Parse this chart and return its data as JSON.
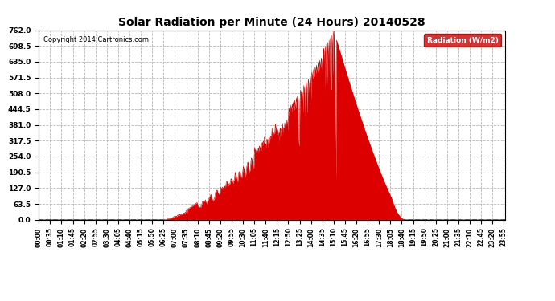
{
  "title": "Solar Radiation per Minute (24 Hours) 20140528",
  "copyright_text": "Copyright 2014 Cartronics.com",
  "legend_label": "Radiation (W/m2)",
  "bg_color": "#ffffff",
  "plot_bg_color": "#ffffff",
  "grid_color": "#b0b0b0",
  "fill_color": "#dd0000",
  "line_color": "#cc0000",
  "zero_line_color": "#ff0000",
  "legend_bg": "#cc0000",
  "legend_text_color": "#ffffff",
  "yticks": [
    0.0,
    63.5,
    127.0,
    190.5,
    254.0,
    317.5,
    381.0,
    444.5,
    508.0,
    571.5,
    635.0,
    698.5,
    762.0
  ],
  "ymax": 762.0,
  "ymin": 0.0,
  "total_minutes": 1440,
  "xtick_interval": 35,
  "xtick_labels": [
    "00:00",
    "00:35",
    "01:10",
    "01:45",
    "02:20",
    "02:55",
    "03:30",
    "04:05",
    "04:40",
    "05:15",
    "05:50",
    "06:25",
    "07:00",
    "07:35",
    "08:10",
    "08:45",
    "09:20",
    "09:55",
    "10:30",
    "11:05",
    "11:40",
    "12:15",
    "12:50",
    "13:25",
    "14:00",
    "14:35",
    "15:10",
    "15:45",
    "16:20",
    "16:55",
    "17:30",
    "18:05",
    "18:40",
    "19:15",
    "19:50",
    "20:25",
    "21:00",
    "21:35",
    "22:10",
    "22:45",
    "23:20",
    "23:55"
  ]
}
